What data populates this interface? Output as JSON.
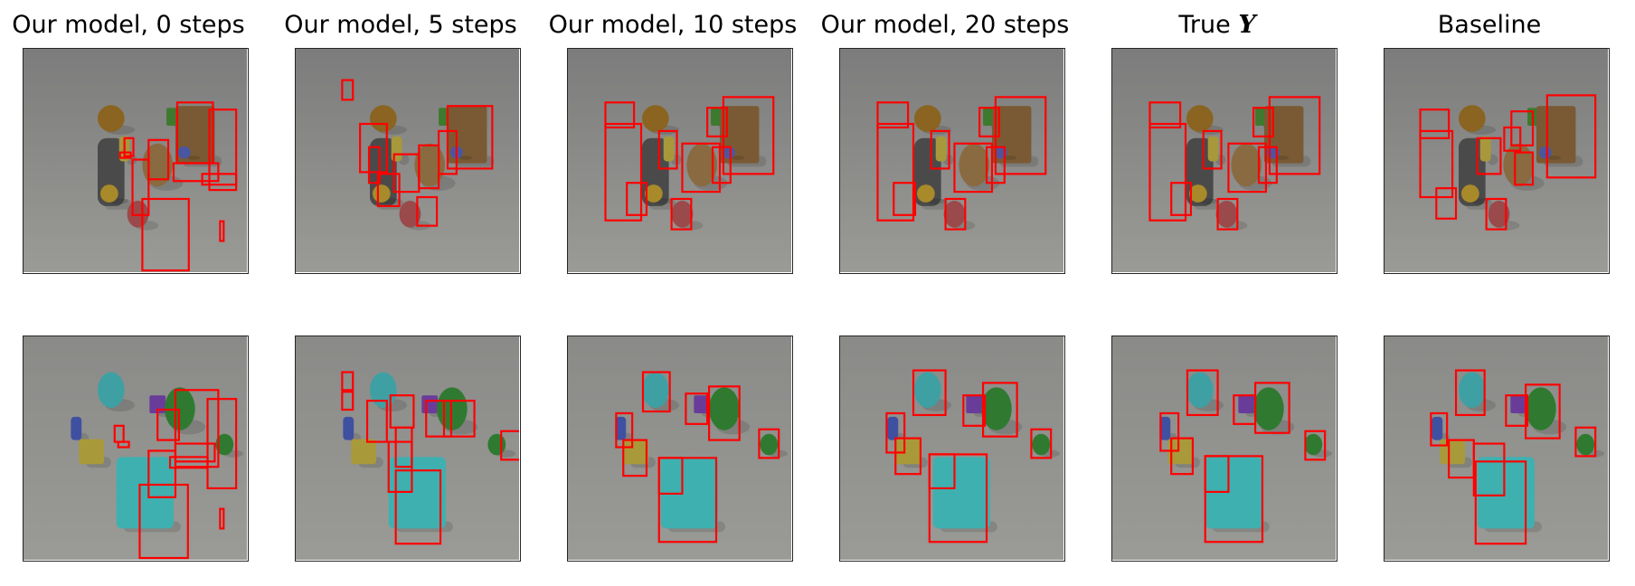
{
  "figure": {
    "columns": [
      {
        "title": "Our model, 0 steps"
      },
      {
        "title": "Our model, 5 steps"
      },
      {
        "title": "Our model, 10 steps"
      },
      {
        "title": "Our model, 20 steps"
      },
      {
        "title_prefix": "True ",
        "title_math": "Y"
      },
      {
        "title": "Baseline"
      }
    ],
    "rows": [
      {
        "scene": "metallic-objects-scene",
        "background": "#7c7c7c",
        "objects": [
          {
            "name": "gold-sphere",
            "shape": "ellipse",
            "color": "#8a6420"
          },
          {
            "name": "gray-cylinder",
            "shape": "rect",
            "color": "#4a4a4a"
          },
          {
            "name": "small-gold-sphere",
            "shape": "ellipse",
            "color": "#a88a2a"
          },
          {
            "name": "yellow-cylinder",
            "shape": "rect",
            "color": "#a8983c"
          },
          {
            "name": "green-cube",
            "shape": "rect",
            "color": "#3e7a2e"
          },
          {
            "name": "brown-cube",
            "shape": "rect",
            "color": "#7a5a34"
          },
          {
            "name": "brown-egg",
            "shape": "ellipse",
            "color": "#8a6a40"
          },
          {
            "name": "blue-sphere",
            "shape": "ellipse",
            "color": "#4a56a0"
          },
          {
            "name": "red-sphere",
            "shape": "ellipse",
            "color": "#9a4a4a"
          }
        ]
      },
      {
        "scene": "cyan-objects-scene",
        "background": "#8a8a88",
        "objects": [
          {
            "name": "cyan-egg",
            "shape": "ellipse",
            "color": "#3fa0a4"
          },
          {
            "name": "blue-cylinder",
            "shape": "rect",
            "color": "#4050a0"
          },
          {
            "name": "yellow-cube",
            "shape": "rect",
            "color": "#a89a3a"
          },
          {
            "name": "purple-cube",
            "shape": "rect",
            "color": "#6a3c9a"
          },
          {
            "name": "green-egg",
            "shape": "ellipse",
            "color": "#2f7a30"
          },
          {
            "name": "small-green-egg",
            "shape": "ellipse",
            "color": "#2f7a30"
          },
          {
            "name": "cyan-cube",
            "shape": "rect",
            "color": "#3fb0b0"
          }
        ]
      }
    ],
    "box_color": "#ff0000"
  }
}
